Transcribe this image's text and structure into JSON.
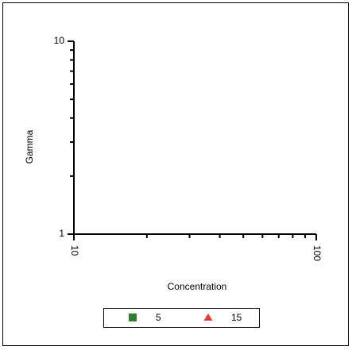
{
  "chart_data": {
    "type": "scatter",
    "x_label": "Concentration",
    "y_label": "Gamma",
    "xscale": "log",
    "yscale": "log",
    "minor_ticks": true,
    "xlim": [
      10,
      100
    ],
    "ylim": [
      1,
      10
    ],
    "xticks": [
      10,
      100
    ],
    "yticks": [
      1,
      10
    ],
    "series": [
      {
        "name": "5",
        "color": "#2e7d32",
        "marker": "square",
        "x": [],
        "values": []
      },
      {
        "name": "15",
        "color": "#e53935",
        "marker": "triangle",
        "x": [],
        "values": []
      }
    ],
    "legend": "bottom"
  }
}
